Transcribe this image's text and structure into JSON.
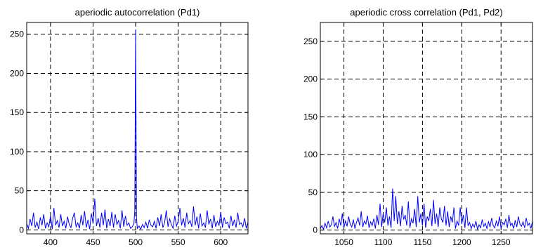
{
  "chart_data": [
    {
      "type": "line",
      "title": "aperiodic autocorrelation (Pd1)",
      "xlabel": "",
      "ylabel": "",
      "xlim": [
        372,
        632
      ],
      "ylim": [
        -5,
        265
      ],
      "xticks": [
        400,
        450,
        500,
        550,
        600
      ],
      "yticks": [
        0,
        50,
        100,
        150,
        200,
        250
      ],
      "grid": true,
      "series": [
        {
          "color": "#0000ff",
          "x": [
            372,
            374,
            376,
            378,
            380,
            382,
            384,
            386,
            388,
            390,
            392,
            394,
            396,
            398,
            400,
            402,
            404,
            406,
            408,
            410,
            412,
            414,
            416,
            418,
            420,
            422,
            424,
            426,
            428,
            430,
            432,
            434,
            436,
            438,
            440,
            442,
            444,
            446,
            448,
            450,
            452,
            454,
            456,
            458,
            460,
            462,
            464,
            466,
            468,
            470,
            472,
            474,
            476,
            478,
            480,
            482,
            484,
            486,
            488,
            490,
            492,
            494,
            496,
            498,
            499,
            500,
            501,
            502,
            504,
            506,
            508,
            510,
            512,
            514,
            516,
            518,
            520,
            522,
            524,
            526,
            528,
            530,
            532,
            534,
            536,
            538,
            540,
            542,
            544,
            546,
            548,
            550,
            552,
            554,
            556,
            558,
            560,
            562,
            564,
            566,
            568,
            570,
            572,
            574,
            576,
            578,
            580,
            582,
            584,
            586,
            588,
            590,
            592,
            594,
            596,
            598,
            600,
            602,
            604,
            606,
            608,
            610,
            612,
            614,
            616,
            618,
            620,
            622,
            624,
            626,
            628,
            630,
            632
          ],
          "y": [
            8,
            2,
            14,
            5,
            22,
            3,
            10,
            1,
            16,
            6,
            20,
            2,
            9,
            4,
            18,
            1,
            28,
            6,
            12,
            3,
            20,
            5,
            11,
            2,
            17,
            7,
            3,
            15,
            22,
            4,
            9,
            2,
            19,
            6,
            24,
            3,
            13,
            1,
            21,
            8,
            40,
            5,
            15,
            3,
            22,
            6,
            26,
            2,
            14,
            5,
            23,
            3,
            20,
            7,
            12,
            2,
            25,
            4,
            18,
            6,
            9,
            2,
            4,
            8,
            25,
            256,
            15,
            2,
            5,
            1,
            7,
            3,
            10,
            2,
            13,
            6,
            4,
            11,
            2,
            16,
            5,
            20,
            3,
            9,
            25,
            4,
            14,
            7,
            2,
            18,
            5,
            11,
            28,
            6,
            15,
            3,
            22,
            8,
            12,
            4,
            30,
            6,
            17,
            2,
            21,
            5,
            9,
            3,
            25,
            7,
            14,
            2,
            19,
            4,
            11,
            6,
            23,
            3,
            16,
            8,
            10,
            2,
            18,
            5,
            13,
            3,
            22,
            7,
            9,
            4,
            15,
            2,
            10
          ]
        }
      ]
    },
    {
      "type": "line",
      "title": "aperiodic cross correlation (Pd1, Pd2)",
      "xlabel": "",
      "ylabel": "",
      "xlim": [
        1020,
        1290
      ],
      "ylim": [
        -5,
        275
      ],
      "xticks": [
        1050,
        1100,
        1150,
        1200,
        1250
      ],
      "yticks": [
        0,
        50,
        100,
        150,
        200,
        250
      ],
      "grid": true,
      "series": [
        {
          "color": "#0000ff",
          "x": [
            1020,
            1022,
            1024,
            1026,
            1028,
            1030,
            1032,
            1034,
            1036,
            1038,
            1040,
            1042,
            1044,
            1046,
            1048,
            1050,
            1052,
            1054,
            1056,
            1058,
            1060,
            1062,
            1064,
            1066,
            1068,
            1070,
            1072,
            1074,
            1076,
            1078,
            1080,
            1082,
            1084,
            1086,
            1088,
            1090,
            1092,
            1094,
            1096,
            1098,
            1100,
            1102,
            1104,
            1106,
            1108,
            1110,
            1112,
            1114,
            1116,
            1118,
            1120,
            1122,
            1124,
            1126,
            1128,
            1130,
            1132,
            1134,
            1136,
            1138,
            1140,
            1142,
            1144,
            1146,
            1148,
            1150,
            1152,
            1154,
            1156,
            1158,
            1160,
            1162,
            1164,
            1166,
            1168,
            1170,
            1172,
            1174,
            1176,
            1178,
            1180,
            1182,
            1184,
            1186,
            1188,
            1190,
            1192,
            1194,
            1196,
            1198,
            1200,
            1202,
            1204,
            1206,
            1208,
            1210,
            1212,
            1214,
            1216,
            1218,
            1220,
            1222,
            1224,
            1226,
            1228,
            1230,
            1232,
            1234,
            1236,
            1238,
            1240,
            1242,
            1244,
            1246,
            1248,
            1250,
            1252,
            1254,
            1256,
            1258,
            1260,
            1262,
            1264,
            1266,
            1268,
            1270,
            1272,
            1274,
            1276,
            1278,
            1280,
            1282,
            1284,
            1286,
            1288,
            1290
          ],
          "y": [
            2,
            6,
            1,
            9,
            3,
            12,
            4,
            7,
            18,
            5,
            10,
            2,
            15,
            6,
            22,
            3,
            12,
            5,
            18,
            8,
            4,
            14,
            2,
            10,
            16,
            6,
            25,
            4,
            12,
            8,
            19,
            3,
            11,
            6,
            15,
            2,
            20,
            7,
            35,
            4,
            22,
            10,
            30,
            6,
            18,
            3,
            55,
            12,
            45,
            8,
            25,
            5,
            32,
            14,
            20,
            6,
            38,
            3,
            15,
            9,
            28,
            4,
            45,
            10,
            22,
            6,
            35,
            3,
            18,
            12,
            28,
            5,
            40,
            8,
            22,
            4,
            30,
            15,
            10,
            32,
            6,
            25,
            4,
            18,
            10,
            30,
            2,
            12,
            6,
            30,
            8,
            20,
            3,
            30,
            6,
            10,
            2,
            8,
            4,
            12,
            1,
            7,
            3,
            14,
            5,
            9,
            2,
            11,
            4,
            16,
            6,
            3,
            12,
            5,
            18,
            2,
            10,
            7,
            15,
            3,
            20,
            6,
            9,
            2,
            13,
            4,
            18,
            8,
            5,
            11,
            3,
            16,
            6,
            9,
            2,
            12
          ]
        }
      ]
    }
  ]
}
